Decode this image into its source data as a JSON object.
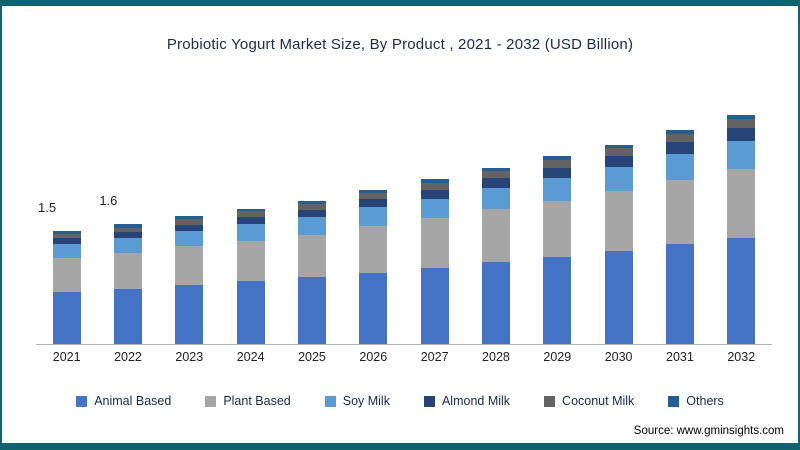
{
  "title": "Probiotic Yogurt Market Size, By  Product , 2021 - 2032 (USD Billion)",
  "source": "Source:  www.gminsights.com",
  "frame_color": "#10646f",
  "chart_data": {
    "type": "bar",
    "stacked": true,
    "title": "Probiotic Yogurt Market Size, By Product , 2021 - 2032 (USD Billion)",
    "xlabel": "",
    "ylabel": "USD Billion",
    "legend_position": "bottom",
    "grid": false,
    "categories": [
      "2021",
      "2022",
      "2023",
      "2024",
      "2025",
      "2026",
      "2027",
      "2028",
      "2029",
      "2030",
      "2031",
      "2032"
    ],
    "bar_labels": [
      "1.5",
      "1.6",
      "",
      "",
      "",
      "",
      "",
      "",
      "",
      "",
      "",
      ""
    ],
    "series": [
      {
        "name": "Animal Based",
        "color": "#4472c4",
        "values": [
          0.7,
          0.74,
          0.79,
          0.84,
          0.89,
          0.95,
          1.02,
          1.09,
          1.16,
          1.24,
          1.33,
          1.42
        ]
      },
      {
        "name": "Plant Based",
        "color": "#a6a6a6",
        "values": [
          0.45,
          0.48,
          0.51,
          0.54,
          0.57,
          0.62,
          0.66,
          0.71,
          0.75,
          0.8,
          0.86,
          0.92
        ]
      },
      {
        "name": "Soy Milk",
        "color": "#5b9bd5",
        "values": [
          0.18,
          0.19,
          0.2,
          0.22,
          0.23,
          0.25,
          0.26,
          0.28,
          0.3,
          0.32,
          0.34,
          0.37
        ]
      },
      {
        "name": "Almond Milk",
        "color": "#264478",
        "values": [
          0.08,
          0.08,
          0.09,
          0.1,
          0.1,
          0.11,
          0.12,
          0.13,
          0.14,
          0.15,
          0.16,
          0.17
        ]
      },
      {
        "name": "Coconut Milk",
        "color": "#636363",
        "values": [
          0.06,
          0.06,
          0.07,
          0.07,
          0.08,
          0.08,
          0.09,
          0.09,
          0.1,
          0.1,
          0.11,
          0.12
        ]
      },
      {
        "name": "Others",
        "color": "#255e91",
        "values": [
          0.03,
          0.05,
          0.04,
          0.03,
          0.03,
          0.04,
          0.05,
          0.05,
          0.05,
          0.04,
          0.05,
          0.05
        ]
      }
    ]
  }
}
